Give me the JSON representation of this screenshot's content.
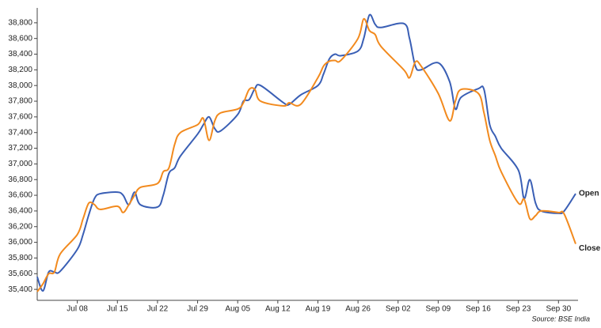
{
  "chart_data": {
    "type": "line",
    "source": "Source: BSE India",
    "x": [
      "Jul 01",
      "Jul 02",
      "Jul 03",
      "Jul 04",
      "Jul 05",
      "Jul 08",
      "Jul 09",
      "Jul 10",
      "Jul 11",
      "Jul 12",
      "Jul 15",
      "Jul 16",
      "Jul 17",
      "Jul 18",
      "Jul 19",
      "Jul 22",
      "Jul 23",
      "Jul 24",
      "Jul 25",
      "Jul 26",
      "Jul 29",
      "Jul 30",
      "Jul 31",
      "Aug 01",
      "Aug 02",
      "Aug 05",
      "Aug 06",
      "Aug 07",
      "Aug 08",
      "Aug 09",
      "Aug 13",
      "Aug 14",
      "Aug 16",
      "Aug 19",
      "Aug 20",
      "Aug 21",
      "Aug 22",
      "Aug 23",
      "Aug 26",
      "Aug 27",
      "Aug 28",
      "Aug 29",
      "Aug 30",
      "Sep 03",
      "Sep 04",
      "Sep 05",
      "Sep 06",
      "Sep 09",
      "Sep 11",
      "Sep 12",
      "Sep 13",
      "Sep 16",
      "Sep 17",
      "Sep 18",
      "Sep 19",
      "Sep 20",
      "Sep 23",
      "Sep 24",
      "Sep 25",
      "Sep 26",
      "Sep 27",
      "Sep 30",
      "Oct 01",
      "Oct 03"
    ],
    "series": [
      {
        "name": "Open",
        "color": "#3a5fb5",
        "values": [
          35560,
          35380,
          35620,
          35620,
          35630,
          35910,
          36100,
          36350,
          36560,
          36620,
          36640,
          36600,
          36480,
          36640,
          36480,
          36450,
          36600,
          36880,
          36950,
          37100,
          37380,
          37500,
          37600,
          37450,
          37420,
          37630,
          37800,
          37820,
          37960,
          38000,
          37780,
          37760,
          37880,
          38000,
          38150,
          38340,
          38400,
          38380,
          38440,
          38600,
          38900,
          38780,
          38740,
          38790,
          38600,
          38250,
          38200,
          38290,
          38050,
          37700,
          37850,
          37960,
          37950,
          37500,
          37350,
          37200,
          36920,
          36560,
          36800,
          36500,
          36400,
          36370,
          36400,
          36620
        ]
      },
      {
        "name": "Close",
        "color": "#f28a1e",
        "values": [
          35370,
          35470,
          35600,
          35620,
          35850,
          36100,
          36300,
          36500,
          36480,
          36420,
          36460,
          36380,
          36480,
          36600,
          36700,
          36750,
          36900,
          36950,
          37250,
          37400,
          37500,
          37580,
          37300,
          37550,
          37650,
          37700,
          37780,
          37950,
          37950,
          37800,
          37740,
          37780,
          37760,
          38100,
          38250,
          38310,
          38320,
          38320,
          38600,
          38850,
          38700,
          38650,
          38500,
          38200,
          38100,
          38300,
          38250,
          37900,
          37550,
          37800,
          37950,
          37900,
          37650,
          37300,
          37100,
          36900,
          36500,
          36550,
          36300,
          36340,
          36400,
          36380,
          36360,
          35980
        ]
      }
    ],
    "xticks": [
      "Jul 08",
      "Jul 15",
      "Jul 22",
      "Jul 29",
      "Aug 05",
      "Aug 12",
      "Aug 19",
      "Aug 26",
      "Sep 02",
      "Sep 09",
      "Sep 16",
      "Sep 23",
      "Sep 30"
    ],
    "ylim": [
      35260,
      38990
    ],
    "yticks": [
      {
        "value": 35400,
        "label": "35,400"
      },
      {
        "value": 35600,
        "label": "35,600"
      },
      {
        "value": 35800,
        "label": "35,800"
      },
      {
        "value": 36000,
        "label": "36,000"
      },
      {
        "value": 36200,
        "label": "36,200"
      },
      {
        "value": 36400,
        "label": "36,400"
      },
      {
        "value": 36600,
        "label": "36,600"
      },
      {
        "value": 36800,
        "label": "36,800"
      },
      {
        "value": 37000,
        "label": "37,000"
      },
      {
        "value": 37200,
        "label": "37,200"
      },
      {
        "value": 37400,
        "label": "37,400"
      },
      {
        "value": 37600,
        "label": "37,600"
      },
      {
        "value": 37800,
        "label": "37,800"
      },
      {
        "value": 38000,
        "label": "38,000"
      },
      {
        "value": 38200,
        "label": "38,200"
      },
      {
        "value": 38400,
        "label": "38,400"
      },
      {
        "value": 38600,
        "label": "38,600"
      },
      {
        "value": 38800,
        "label": "38,800"
      }
    ]
  }
}
